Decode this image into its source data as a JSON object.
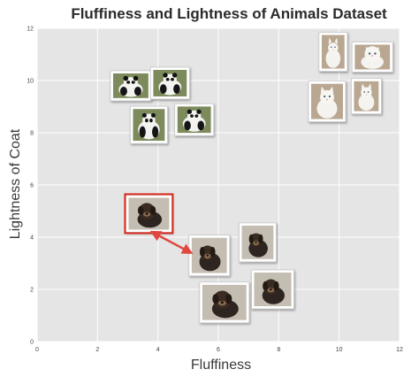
{
  "chart_data": {
    "type": "scatter",
    "title": "Fluffiness and Lightness of Animals Dataset",
    "xlabel": "Fluffiness",
    "ylabel": "Lightness of Coat",
    "xlim": [
      0,
      12
    ],
    "ylim": [
      0,
      12
    ],
    "xticks": [
      "0",
      "2",
      "4",
      "6",
      "8",
      "10",
      "12"
    ],
    "yticks": [
      "0",
      "2",
      "4",
      "6",
      "8",
      "10",
      "12"
    ],
    "grid": true,
    "series": [
      {
        "group": "panda",
        "points": [
          {
            "x": 3.1,
            "y": 9.8
          },
          {
            "x": 4.4,
            "y": 9.9
          },
          {
            "x": 3.7,
            "y": 8.3
          },
          {
            "x": 5.2,
            "y": 8.5
          }
        ]
      },
      {
        "group": "cat",
        "points": [
          {
            "x": 9.8,
            "y": 11.1
          },
          {
            "x": 11.1,
            "y": 10.9
          },
          {
            "x": 9.6,
            "y": 9.2
          },
          {
            "x": 10.9,
            "y": 9.4
          }
        ]
      },
      {
        "group": "dog",
        "points": [
          {
            "x": 3.7,
            "y": 4.9,
            "highlighted": true
          },
          {
            "x": 5.7,
            "y": 3.3
          },
          {
            "x": 7.3,
            "y": 3.8
          },
          {
            "x": 7.8,
            "y": 2.0
          },
          {
            "x": 6.2,
            "y": 1.5
          }
        ]
      }
    ],
    "annotation": {
      "type": "double-arrow",
      "from": {
        "x": 3.8,
        "y": 4.2
      },
      "to": {
        "x": 5.1,
        "y": 3.4
      }
    }
  },
  "colors": {
    "panel": "#e5e5e5",
    "grid": "#ffffff",
    "highlight": "#d8291c",
    "arrow": "#e0473f"
  }
}
